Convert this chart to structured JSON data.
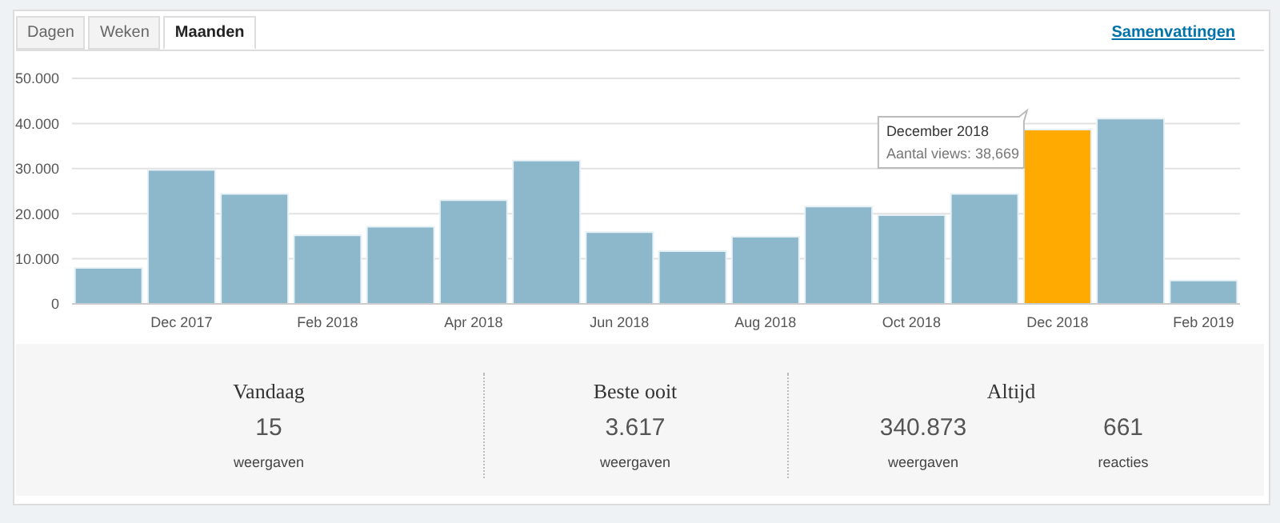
{
  "chart_data": [
    {
      "type": "bar",
      "categories": [
        null,
        "Dec 2017",
        null,
        "Feb 2018",
        null,
        "Apr 2018",
        null,
        "Jun 2018",
        null,
        "Aug 2018",
        null,
        "Oct 2018",
        null,
        "Dec 2018",
        null,
        "Feb 2019"
      ],
      "values": [
        8000,
        29700,
        24400,
        15200,
        17100,
        23000,
        31800,
        15900,
        11700,
        14900,
        21600,
        19700,
        24400,
        38669,
        41100,
        5200
      ],
      "colors": [
        "#8db8cc",
        "#8db8cc",
        "#8db8cc",
        "#8db8cc",
        "#8db8cc",
        "#8db8cc",
        "#8db8cc",
        "#8db8cc",
        "#8db8cc",
        "#8db8cc",
        "#8db8cc",
        "#8db8cc",
        "#8db8cc",
        "#ffaa00",
        "#8db8cc",
        "#8db8cc"
      ],
      "ylim": [
        0,
        50000
      ],
      "yticks": [
        {
          "value": 0,
          "label": "0"
        },
        {
          "value": 10000,
          "label": "10.000"
        },
        {
          "value": 20000,
          "label": "20.000"
        },
        {
          "value": 30000,
          "label": "30.000"
        },
        {
          "value": 40000,
          "label": "40.000"
        },
        {
          "value": 50000,
          "label": "50.000"
        }
      ],
      "grid": "y",
      "annotations": [
        "Dagen",
        "Weken",
        "Maanden",
        "Samenvattingen",
        {
          "text": "December 2018\nAantal views: 38,669",
          "x": "Dec 2018",
          "y": 38669
        }
      ]
    },
    {
      "type": "other",
      "annotations": [
        "Vandaag",
        "15",
        "weergaven",
        "Beste ooit",
        "3.617",
        "weergaven",
        "Altijd",
        "340.873",
        "weergaven",
        "661",
        "reacties"
      ]
    }
  ]
}
